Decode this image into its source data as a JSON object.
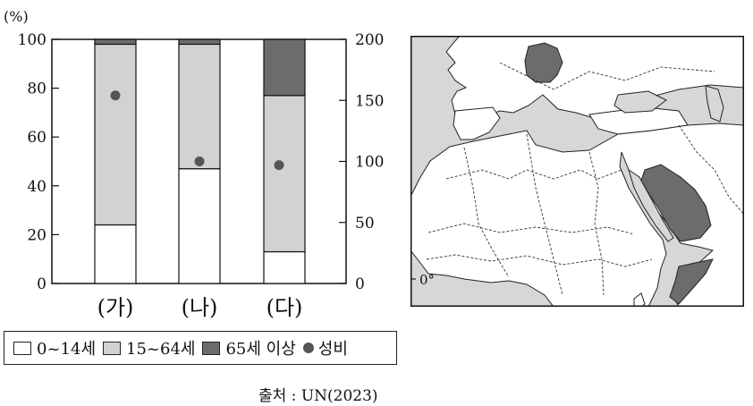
{
  "chart_data": {
    "type": "bar",
    "stacked": true,
    "unit_label": "(%)",
    "categories": [
      "(가)",
      "(나)",
      "(다)"
    ],
    "series": [
      {
        "name": "0~14세",
        "values": [
          24,
          47,
          13
        ],
        "color": "#ffffff"
      },
      {
        "name": "15~64세",
        "values": [
          74,
          51,
          64
        ],
        "color": "#d2d2d2"
      },
      {
        "name": "65세 이상",
        "values": [
          2,
          2,
          23
        ],
        "color": "#6c6c6c"
      }
    ],
    "secondary_series": {
      "name": "성비",
      "values": [
        154,
        100,
        97
      ],
      "color": "#555555"
    },
    "ylim": [
      0,
      100
    ],
    "yticks": [
      0,
      20,
      40,
      60,
      80,
      100
    ],
    "y2lim": [
      0,
      200
    ],
    "y2ticks": [
      0,
      50,
      100,
      150,
      200
    ],
    "legend_position": "bottom",
    "source": "출처 : UN(2023)"
  },
  "map": {
    "meridian_label": "0°",
    "colors": {
      "sea": "#d7d7d7",
      "land": "#ffffff",
      "highlight": "#6c6c6c"
    }
  }
}
